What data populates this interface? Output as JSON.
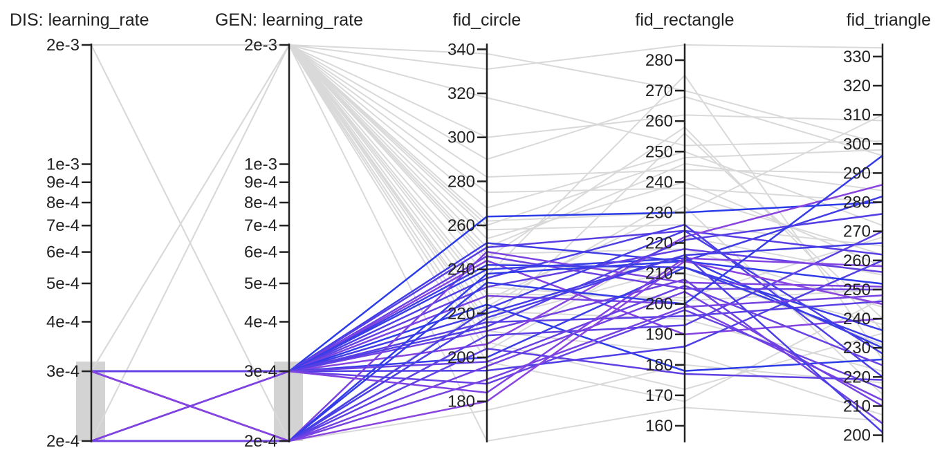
{
  "chart_data": {
    "type": "parallel_coordinates",
    "axes": [
      {
        "key": "dis_lr",
        "label": "DIS: learning_rate",
        "scale": "log",
        "range": [
          0.0002,
          0.002
        ],
        "ticks": [
          0.002,
          0.001,
          0.0009,
          0.0008,
          0.0007,
          0.0006,
          0.0005,
          0.0004,
          0.0003,
          0.0002
        ],
        "tick_labels": [
          "2e-3",
          "1e-3",
          "9e-4",
          "8e-4",
          "7e-4",
          "6e-4",
          "5e-4",
          "4e-4",
          "3e-4",
          "2e-4"
        ],
        "brush": [
          0.0002,
          0.0003
        ]
      },
      {
        "key": "gen_lr",
        "label": "GEN: learning_rate",
        "scale": "log",
        "range": [
          0.0002,
          0.002
        ],
        "ticks": [
          0.002,
          0.001,
          0.0009,
          0.0008,
          0.0007,
          0.0006,
          0.0005,
          0.0004,
          0.0003,
          0.0002
        ],
        "tick_labels": [
          "2e-3",
          "1e-3",
          "9e-4",
          "8e-4",
          "7e-4",
          "6e-4",
          "5e-4",
          "4e-4",
          "3e-4",
          "2e-4"
        ],
        "brush": [
          0.0002,
          0.0003
        ]
      },
      {
        "key": "fid_circle",
        "label": "fid_circle",
        "scale": "linear",
        "range": [
          162,
          342
        ],
        "ticks": [
          340,
          320,
          300,
          280,
          260,
          240,
          220,
          200,
          180
        ],
        "tick_labels": [
          "340",
          "320",
          "300",
          "280",
          "260",
          "240",
          "220",
          "200",
          "180"
        ]
      },
      {
        "key": "fid_rectangle",
        "label": "fid_rectangle",
        "scale": "linear",
        "range": [
          155,
          285
        ],
        "ticks": [
          280,
          270,
          260,
          250,
          240,
          230,
          220,
          210,
          200,
          190,
          180,
          170,
          160
        ],
        "tick_labels": [
          "280",
          "270",
          "260",
          "250",
          "240",
          "230",
          "220",
          "210",
          "200",
          "190",
          "180",
          "170",
          "160"
        ]
      },
      {
        "key": "fid_triangle",
        "label": "fid_triangle",
        "scale": "linear",
        "range": [
          198,
          334
        ],
        "ticks": [
          330,
          320,
          310,
          300,
          290,
          280,
          270,
          260,
          250,
          240,
          230,
          220,
          210,
          200
        ],
        "tick_labels": [
          "330",
          "320",
          "310",
          "300",
          "290",
          "280",
          "270",
          "260",
          "250",
          "240",
          "230",
          "220",
          "210",
          "200"
        ]
      }
    ],
    "colors": {
      "inactive": "#d9d9d9",
      "active_low": "#2a3be8",
      "active_high": "#8a44e0",
      "brush": "#d3d3d3",
      "axis": "#222222"
    },
    "active_series": [
      {
        "dis_lr": 0.0003,
        "gen_lr": 0.0003,
        "fid_circle": 264,
        "fid_rectangle": 230,
        "fid_triangle": 280
      },
      {
        "dis_lr": 0.0003,
        "gen_lr": 0.0003,
        "fid_circle": 252,
        "fid_rectangle": 214,
        "fid_triangle": 282
      },
      {
        "dis_lr": 0.0003,
        "gen_lr": 0.0003,
        "fid_circle": 250,
        "fid_rectangle": 224,
        "fid_triangle": 262
      },
      {
        "dis_lr": 0.0003,
        "gen_lr": 0.0003,
        "fid_circle": 246,
        "fid_rectangle": 205,
        "fid_triangle": 250
      },
      {
        "dis_lr": 0.0003,
        "gen_lr": 0.0003,
        "fid_circle": 244,
        "fid_rectangle": 190,
        "fid_triangle": 240
      },
      {
        "dis_lr": 0.0003,
        "gen_lr": 0.0003,
        "fid_circle": 240,
        "fid_rectangle": 215,
        "fid_triangle": 230
      },
      {
        "dis_lr": 0.0003,
        "gen_lr": 0.0003,
        "fid_circle": 236,
        "fid_rectangle": 226,
        "fid_triangle": 220
      },
      {
        "dis_lr": 0.0003,
        "gen_lr": 0.0003,
        "fid_circle": 232,
        "fid_rectangle": 218,
        "fid_triangle": 256
      },
      {
        "dis_lr": 0.0003,
        "gen_lr": 0.0003,
        "fid_circle": 228,
        "fid_rectangle": 200,
        "fid_triangle": 212
      },
      {
        "dis_lr": 0.0003,
        "gen_lr": 0.0003,
        "fid_circle": 224,
        "fid_rectangle": 178,
        "fid_triangle": 226
      },
      {
        "dis_lr": 0.0003,
        "gen_lr": 0.0003,
        "fid_circle": 220,
        "fid_rectangle": 216,
        "fid_triangle": 266
      },
      {
        "dis_lr": 0.0003,
        "gen_lr": 0.0003,
        "fid_circle": 216,
        "fid_rectangle": 196,
        "fid_triangle": 246
      },
      {
        "dis_lr": 0.0003,
        "gen_lr": 0.0003,
        "fid_circle": 212,
        "fid_rectangle": 208,
        "fid_triangle": 204
      },
      {
        "dis_lr": 0.0003,
        "gen_lr": 0.0003,
        "fid_circle": 206,
        "fid_rectangle": 222,
        "fid_triangle": 286
      },
      {
        "dis_lr": 0.0003,
        "gen_lr": 0.0003,
        "fid_circle": 200,
        "fid_rectangle": 212,
        "fid_triangle": 236
      },
      {
        "dis_lr": 0.0003,
        "gen_lr": 0.0003,
        "fid_circle": 194,
        "fid_rectangle": 186,
        "fid_triangle": 260
      },
      {
        "dis_lr": 0.0003,
        "gen_lr": 0.0003,
        "fid_circle": 188,
        "fid_rectangle": 198,
        "fid_triangle": 216
      },
      {
        "dis_lr": 0.0003,
        "gen_lr": 0.0002,
        "fid_circle": 248,
        "fid_rectangle": 207,
        "fid_triangle": 251
      },
      {
        "dis_lr": 0.0003,
        "gen_lr": 0.0002,
        "fid_circle": 238,
        "fid_rectangle": 214,
        "fid_triangle": 252
      },
      {
        "dis_lr": 0.0003,
        "gen_lr": 0.0002,
        "fid_circle": 222,
        "fid_rectangle": 224,
        "fid_triangle": 228
      },
      {
        "dis_lr": 0.0003,
        "gen_lr": 0.0002,
        "fid_circle": 210,
        "fid_rectangle": 193,
        "fid_triangle": 270
      },
      {
        "dis_lr": 0.0003,
        "gen_lr": 0.0002,
        "fid_circle": 196,
        "fid_rectangle": 204,
        "fid_triangle": 210
      },
      {
        "dis_lr": 0.0003,
        "gen_lr": 0.0002,
        "fid_circle": 180,
        "fid_rectangle": 214,
        "fid_triangle": 245
      },
      {
        "dis_lr": 0.0002,
        "gen_lr": 0.0003,
        "fid_circle": 242,
        "fid_rectangle": 212,
        "fid_triangle": 232
      },
      {
        "dis_lr": 0.0002,
        "gen_lr": 0.0003,
        "fid_circle": 214,
        "fid_rectangle": 221,
        "fid_triangle": 276
      },
      {
        "dis_lr": 0.0002,
        "gen_lr": 0.0003,
        "fid_circle": 198,
        "fid_rectangle": 206,
        "fid_triangle": 224
      },
      {
        "dis_lr": 0.0002,
        "gen_lr": 0.0003,
        "fid_circle": 184,
        "fid_rectangle": 215,
        "fid_triangle": 258
      },
      {
        "dis_lr": 0.0002,
        "gen_lr": 0.0002,
        "fid_circle": 234,
        "fid_rectangle": 200,
        "fid_triangle": 296
      },
      {
        "dis_lr": 0.0002,
        "gen_lr": 0.0002,
        "fid_circle": 218,
        "fid_rectangle": 216,
        "fid_triangle": 201
      },
      {
        "dis_lr": 0.0002,
        "gen_lr": 0.0002,
        "fid_circle": 204,
        "fid_rectangle": 177,
        "fid_triangle": 219
      },
      {
        "dis_lr": 0.0002,
        "gen_lr": 0.0002,
        "fid_circle": 190,
        "fid_rectangle": 199,
        "fid_triangle": 248
      }
    ],
    "inactive_series": [
      {
        "dis_lr": 0.002,
        "gen_lr": 0.002,
        "fid_circle": 331,
        "fid_rectangle": 285,
        "fid_triangle": 333
      },
      {
        "dis_lr": 0.002,
        "gen_lr": 0.002,
        "fid_circle": 338,
        "fid_rectangle": 270,
        "fid_triangle": 300
      },
      {
        "dis_lr": 0.002,
        "gen_lr": 0.002,
        "fid_circle": 300,
        "fid_rectangle": 262,
        "fid_triangle": 308
      },
      {
        "dis_lr": 0.002,
        "gen_lr": 0.002,
        "fid_circle": 318,
        "fid_rectangle": 252,
        "fid_triangle": 301
      },
      {
        "dis_lr": 0.002,
        "gen_lr": 0.002,
        "fid_circle": 290,
        "fid_rectangle": 268,
        "fid_triangle": 296
      },
      {
        "dis_lr": 0.002,
        "gen_lr": 0.002,
        "fid_circle": 282,
        "fid_rectangle": 244,
        "fid_triangle": 290
      },
      {
        "dis_lr": 0.002,
        "gen_lr": 0.002,
        "fid_circle": 275,
        "fid_rectangle": 238,
        "fid_triangle": 280
      },
      {
        "dis_lr": 0.002,
        "gen_lr": 0.002,
        "fid_circle": 268,
        "fid_rectangle": 250,
        "fid_triangle": 272
      },
      {
        "dis_lr": 0.002,
        "gen_lr": 0.002,
        "fid_circle": 262,
        "fid_rectangle": 230,
        "fid_triangle": 310
      },
      {
        "dis_lr": 0.002,
        "gen_lr": 0.002,
        "fid_circle": 258,
        "fid_rectangle": 226,
        "fid_triangle": 265
      },
      {
        "dis_lr": 0.002,
        "gen_lr": 0.002,
        "fid_circle": 254,
        "fid_rectangle": 240,
        "fid_triangle": 258
      },
      {
        "dis_lr": 0.002,
        "gen_lr": 0.002,
        "fid_circle": 247,
        "fid_rectangle": 218,
        "fid_triangle": 244
      },
      {
        "dis_lr": 0.002,
        "gen_lr": 0.002,
        "fid_circle": 243,
        "fid_rectangle": 210,
        "fid_triangle": 238
      },
      {
        "dis_lr": 0.002,
        "gen_lr": 0.002,
        "fid_circle": 237,
        "fid_rectangle": 275,
        "fid_triangle": 226
      },
      {
        "dis_lr": 0.002,
        "gen_lr": 0.002,
        "fid_circle": 232,
        "fid_rectangle": 201,
        "fid_triangle": 250
      },
      {
        "dis_lr": 0.002,
        "gen_lr": 0.002,
        "fid_circle": 226,
        "fid_rectangle": 232,
        "fid_triangle": 214
      },
      {
        "dis_lr": 0.002,
        "gen_lr": 0.002,
        "fid_circle": 221,
        "fid_rectangle": 195,
        "fid_triangle": 222
      },
      {
        "dis_lr": 0.002,
        "gen_lr": 0.002,
        "fid_circle": 217,
        "fid_rectangle": 212,
        "fid_triangle": 231
      },
      {
        "dis_lr": 0.002,
        "gen_lr": 0.002,
        "fid_circle": 212,
        "fid_rectangle": 184,
        "fid_triangle": 207
      },
      {
        "dis_lr": 0.002,
        "gen_lr": 0.002,
        "fid_circle": 207,
        "fid_rectangle": 172,
        "fid_triangle": 235
      },
      {
        "dis_lr": 0.002,
        "gen_lr": 0.002,
        "fid_circle": 203,
        "fid_rectangle": 222,
        "fid_triangle": 255
      },
      {
        "dis_lr": 0.002,
        "gen_lr": 0.002,
        "fid_circle": 198,
        "fid_rectangle": 168,
        "fid_triangle": 247
      },
      {
        "dis_lr": 0.002,
        "gen_lr": 0.0002,
        "fid_circle": 223,
        "fid_rectangle": 236,
        "fid_triangle": 262
      },
      {
        "dis_lr": 0.002,
        "gen_lr": 0.0002,
        "fid_circle": 176,
        "fid_rectangle": 180,
        "fid_triangle": 218
      },
      {
        "dis_lr": 0.0002,
        "gen_lr": 0.002,
        "fid_circle": 250,
        "fid_rectangle": 246,
        "fid_triangle": 284
      },
      {
        "dis_lr": 0.0002,
        "gen_lr": 0.002,
        "fid_circle": 215,
        "fid_rectangle": 256,
        "fid_triangle": 240
      },
      {
        "dis_lr": 0.0003,
        "gen_lr": 0.002,
        "fid_circle": 260,
        "fid_rectangle": 248,
        "fid_triangle": 298
      },
      {
        "dis_lr": 0.0003,
        "gen_lr": 0.002,
        "fid_circle": 229,
        "fid_rectangle": 202,
        "fid_triangle": 268
      },
      {
        "dis_lr": 0.002,
        "gen_lr": 0.002,
        "fid_circle": 162,
        "fid_rectangle": 166,
        "fid_triangle": 205
      },
      {
        "dis_lr": 0.002,
        "gen_lr": 0.002,
        "fid_circle": 245,
        "fid_rectangle": 258,
        "fid_triangle": 236
      }
    ]
  }
}
